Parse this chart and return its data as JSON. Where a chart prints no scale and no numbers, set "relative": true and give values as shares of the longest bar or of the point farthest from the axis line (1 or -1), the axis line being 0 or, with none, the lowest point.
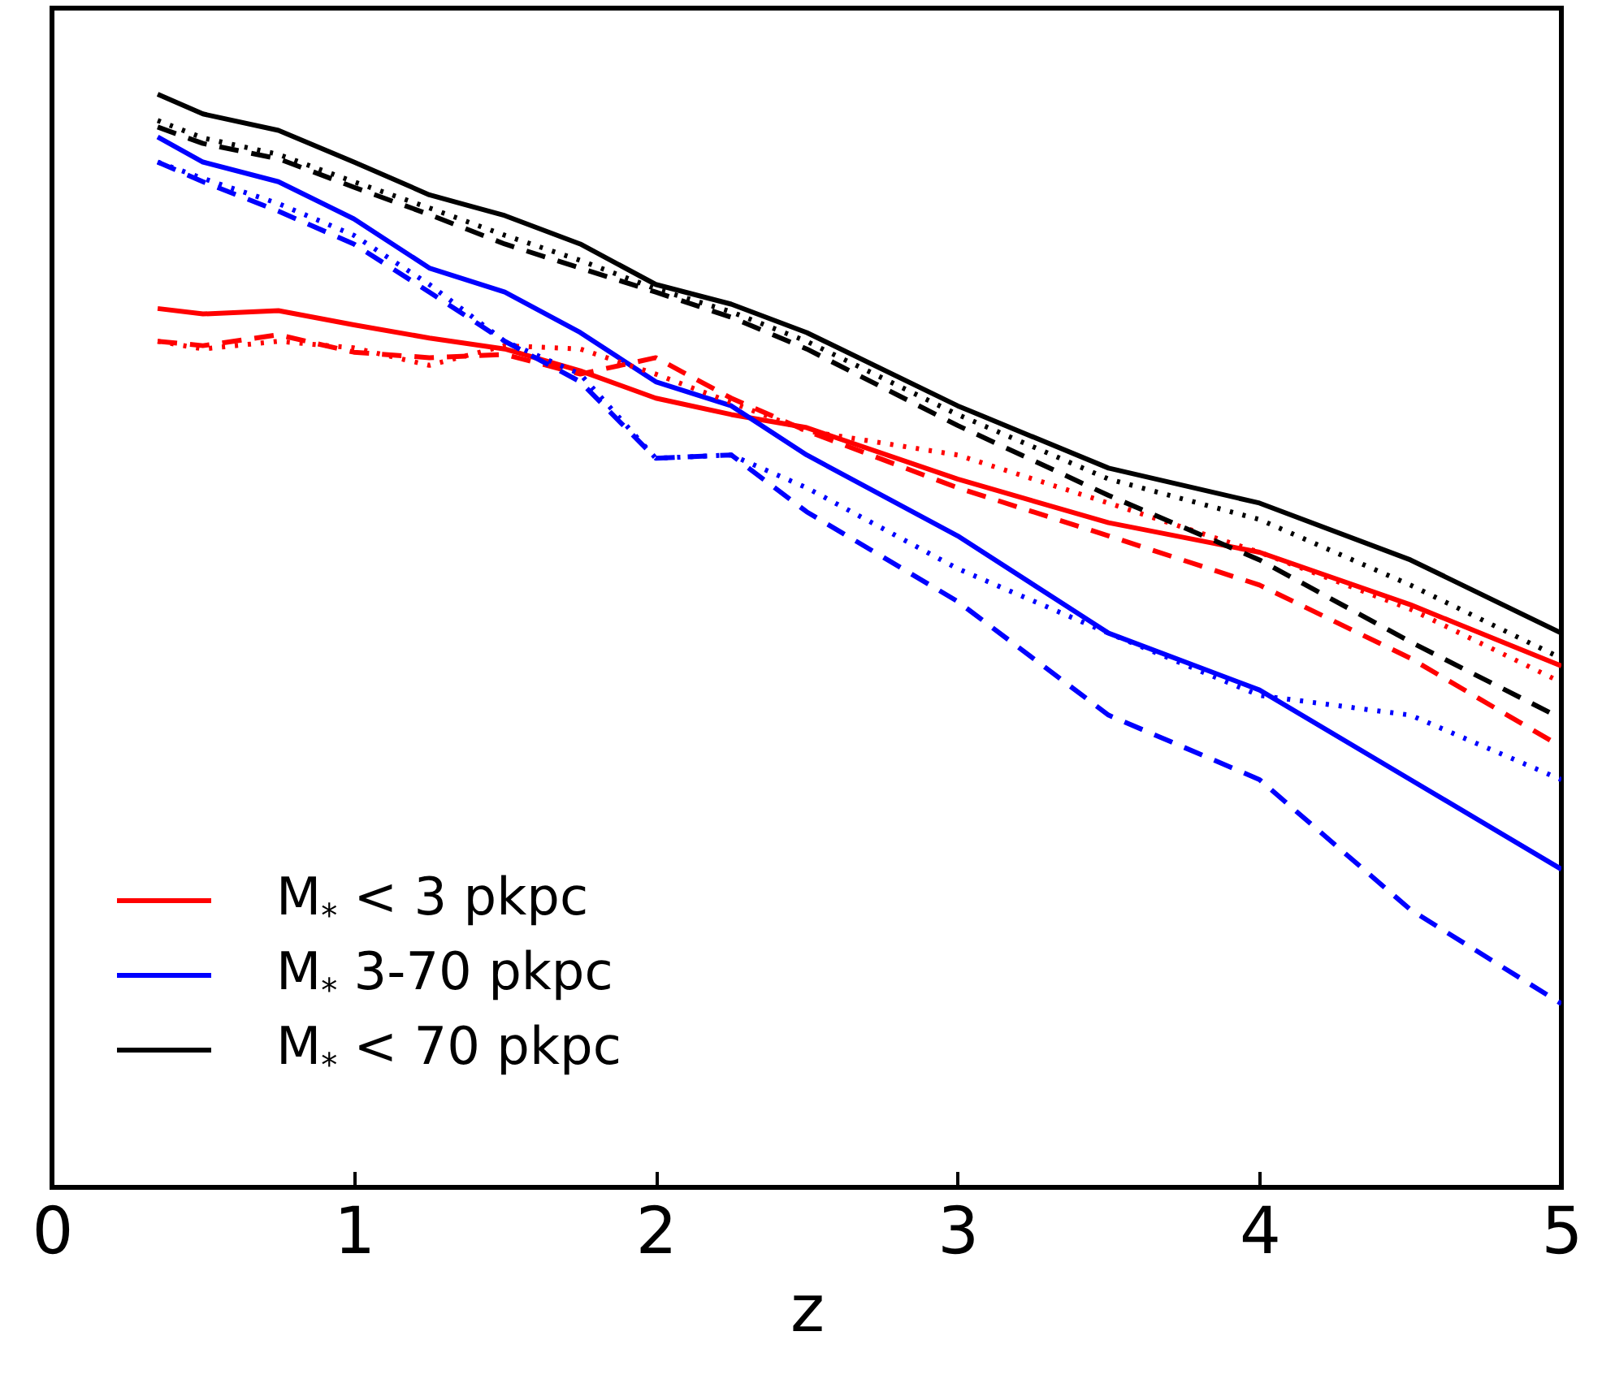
{
  "chart_data": {
    "type": "line",
    "relative": true,
    "xlabel": "z",
    "xlim": [
      0,
      5
    ],
    "xticks": [
      0,
      1,
      2,
      3,
      4,
      5
    ],
    "legend": "bottom left",
    "marker": "none",
    "x": [
      0.35,
      0.5,
      0.75,
      1,
      1.25,
      1.5,
      1.75,
      2,
      2.25,
      2.5,
      3,
      3.5,
      4,
      4.5,
      5
    ],
    "series": [
      {
        "name": "M$_{*}$ < 3 pkpc",
        "color": "#ff0000",
        "line_style": "solid",
        "values": [
          0.804,
          0.799,
          0.802,
          0.789,
          0.777,
          0.767,
          0.747,
          0.722,
          0.707,
          0.695,
          0.648,
          0.608,
          0.581,
          0.533,
          0.477
        ]
      },
      {
        "name": "M$_{*}$ 3-70 pkpc",
        "color": "#0000ff",
        "line_style": "solid",
        "values": [
          0.961,
          0.938,
          0.92,
          0.886,
          0.841,
          0.819,
          0.782,
          0.737,
          0.715,
          0.67,
          0.596,
          0.507,
          0.455,
          0.373,
          0.291
        ]
      },
      {
        "name": "M$_{*}$ < 70 pkpc",
        "color": "#000000",
        "line_style": "solid",
        "values": [
          1.0,
          0.982,
          0.967,
          0.938,
          0.908,
          0.889,
          0.863,
          0.826,
          0.808,
          0.782,
          0.715,
          0.658,
          0.626,
          0.574,
          0.507
        ]
      },
      {
        "color": "#ff0000",
        "line_style": "dashed",
        "values": [
          0.774,
          0.77,
          0.78,
          0.764,
          0.759,
          0.762,
          0.744,
          0.759,
          0.722,
          0.692,
          0.64,
          0.596,
          0.551,
          0.484,
          0.403
        ]
      },
      {
        "color": "#ff0000",
        "line_style": "dotted",
        "values": [
          0.774,
          0.767,
          0.774,
          0.768,
          0.752,
          0.77,
          0.767,
          0.744,
          0.718,
          0.692,
          0.67,
          0.626,
          0.581,
          0.529,
          0.462
        ]
      },
      {
        "color": "#0000ff",
        "line_style": "dashed",
        "values": [
          0.938,
          0.92,
          0.893,
          0.863,
          0.819,
          0.774,
          0.737,
          0.667,
          0.67,
          0.618,
          0.536,
          0.432,
          0.373,
          0.254,
          0.168
        ]
      },
      {
        "color": "#0000ff",
        "line_style": "dotted",
        "values": [
          0.938,
          0.923,
          0.9,
          0.871,
          0.826,
          0.774,
          0.744,
          0.667,
          0.67,
          0.64,
          0.566,
          0.507,
          0.45,
          0.432,
          0.373
        ]
      },
      {
        "color": "#000000",
        "line_style": "dashed",
        "values": [
          0.97,
          0.955,
          0.941,
          0.915,
          0.89,
          0.863,
          0.841,
          0.819,
          0.796,
          0.767,
          0.697,
          0.633,
          0.574,
          0.499,
          0.429
        ]
      },
      {
        "color": "#000000",
        "line_style": "dotted",
        "values": [
          0.976,
          0.96,
          0.945,
          0.92,
          0.896,
          0.871,
          0.848,
          0.822,
          0.801,
          0.774,
          0.707,
          0.648,
          0.611,
          0.551,
          0.484
        ]
      }
    ]
  }
}
